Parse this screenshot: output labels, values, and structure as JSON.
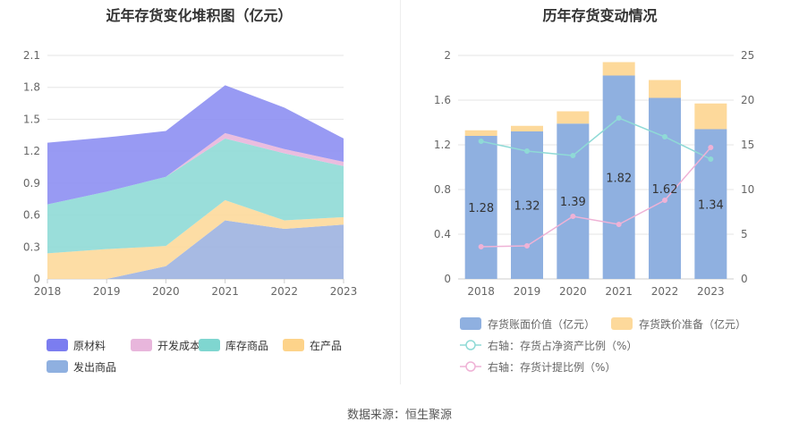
{
  "left_title": "近年存货变化堆积图（亿元）",
  "right_title": "历年存货变动情况",
  "source": "数据来源：恒生聚源",
  "chart_data": [
    {
      "type": "area",
      "title": "近年存货变化堆积图（亿元）",
      "x": [
        "2018",
        "2019",
        "2020",
        "2021",
        "2022",
        "2023"
      ],
      "ylim": [
        0,
        2.1
      ],
      "yticks": [
        "0",
        "0.3",
        "0.6",
        "0.9",
        "1.2",
        "1.5",
        "1.8",
        "2.1"
      ],
      "stacked": true,
      "series": [
        {
          "name": "发出商品",
          "color": "#9db3e0",
          "values": [
            0.0,
            0.0,
            0.12,
            0.55,
            0.47,
            0.51
          ]
        },
        {
          "name": "在产品",
          "color": "#fdd99b",
          "values": [
            0.24,
            0.28,
            0.19,
            0.19,
            0.08,
            0.07
          ]
        },
        {
          "name": "库存商品",
          "color": "#8fdad6",
          "values": [
            0.46,
            0.54,
            0.65,
            0.58,
            0.63,
            0.48
          ]
        },
        {
          "name": "开发成本",
          "color": "#e8b6dc",
          "values": [
            0.0,
            0.0,
            0.0,
            0.05,
            0.04,
            0.04
          ]
        },
        {
          "name": "原材料",
          "color": "#8d8ff2",
          "values": [
            0.58,
            0.51,
            0.43,
            0.45,
            0.39,
            0.22
          ]
        }
      ],
      "legend": [
        {
          "name": "原材料",
          "color": "#7b7df0"
        },
        {
          "name": "开发成本",
          "color": "#e8b6dc"
        },
        {
          "name": "库存商品",
          "color": "#7fd6d0"
        },
        {
          "name": "在产品",
          "color": "#fdd38a"
        },
        {
          "name": "发出商品",
          "color": "#8fb0e0"
        }
      ],
      "legend_position": "bottom"
    },
    {
      "type": "bar",
      "title": "历年存货变动情况",
      "categories": [
        "2018",
        "2019",
        "2020",
        "2021",
        "2022",
        "2023"
      ],
      "ylim_left": [
        0,
        2
      ],
      "yticks_left": [
        "0",
        "0.4",
        "0.8",
        "1.2",
        "1.6",
        "2"
      ],
      "ylim_right": [
        0,
        25
      ],
      "yticks_right": [
        "0",
        "5",
        "10",
        "15",
        "20",
        "25"
      ],
      "series": [
        {
          "name": "存货账面价值（亿元）",
          "kind": "bar",
          "color": "#8fb0e0",
          "values": [
            1.28,
            1.32,
            1.39,
            1.82,
            1.62,
            1.34
          ]
        },
        {
          "name": "存货跌价准备（亿元）",
          "kind": "bar-stacked",
          "color": "#fdd99b",
          "values": [
            0.05,
            0.05,
            0.11,
            0.12,
            0.16,
            0.23
          ]
        },
        {
          "name": "右轴：存货占净资产比例（%）",
          "kind": "line",
          "axis": "right",
          "color": "#8fdad6",
          "values": [
            15.4,
            14.3,
            13.8,
            18.0,
            15.9,
            13.4
          ]
        },
        {
          "name": "右轴：存货计提比例（%）",
          "kind": "line",
          "axis": "right",
          "color": "#efb2d6",
          "values": [
            3.6,
            3.7,
            7.0,
            6.1,
            8.8,
            14.7
          ]
        }
      ],
      "data_labels": [
        "1.28",
        "1.32",
        "1.39",
        "1.82",
        "1.62",
        "1.34"
      ],
      "legend_position": "bottom"
    }
  ]
}
